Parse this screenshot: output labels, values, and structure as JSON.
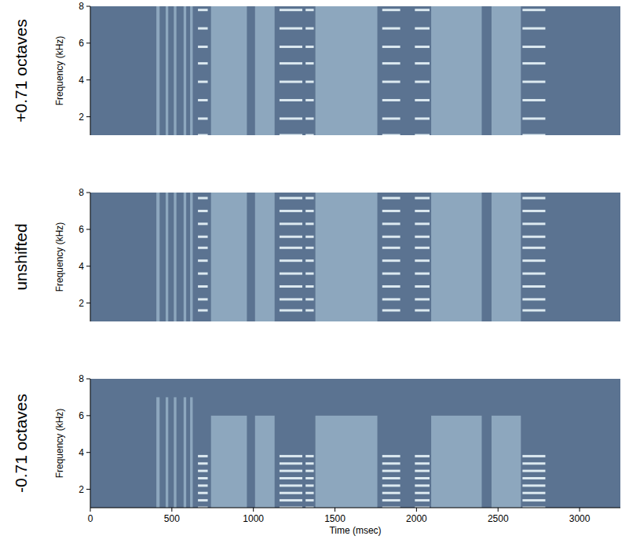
{
  "chart_data": [
    {
      "type": "spectrogram",
      "title": "+0.71 octaves",
      "ylabel": "Frequency (kHz)",
      "xlim": [
        0,
        3250
      ],
      "ylim": [
        1,
        8
      ],
      "yticks": [
        2,
        4,
        6,
        8
      ],
      "tick_labels": "y",
      "bands": [
        {
          "start": 405,
          "end": 425,
          "low": 1,
          "high": 8
        },
        {
          "start": 462,
          "end": 478,
          "low": 1,
          "high": 8
        },
        {
          "start": 512,
          "end": 528,
          "low": 1,
          "high": 8
        },
        {
          "start": 572,
          "end": 588,
          "low": 1,
          "high": 8
        },
        {
          "start": 612,
          "end": 628,
          "low": 1,
          "high": 8
        },
        {
          "start": 740,
          "end": 960,
          "low": 1,
          "high": 8
        },
        {
          "start": 1010,
          "end": 1130,
          "low": 1,
          "high": 8
        },
        {
          "start": 1380,
          "end": 1760,
          "low": 1,
          "high": 8
        },
        {
          "start": 2090,
          "end": 2400,
          "low": 1,
          "high": 8
        },
        {
          "start": 2460,
          "end": 2640,
          "low": 1,
          "high": 8
        }
      ],
      "stacks": [
        {
          "start": 660,
          "end": 720
        },
        {
          "start": 1160,
          "end": 1300
        },
        {
          "start": 1320,
          "end": 1370
        },
        {
          "start": 1790,
          "end": 1900
        },
        {
          "start": 1990,
          "end": 2080
        },
        {
          "start": 2650,
          "end": 2790
        }
      ],
      "harmonics": [
        1.0,
        1.9,
        2.9,
        3.9,
        4.9,
        5.8,
        6.8,
        7.8
      ]
    },
    {
      "type": "spectrogram",
      "title": "unshifted",
      "ylabel": "Frequency (kHz)",
      "xlim": [
        0,
        3250
      ],
      "ylim": [
        1,
        8
      ],
      "yticks": [
        2,
        4,
        6,
        8
      ],
      "tick_labels": "y",
      "bands": [
        {
          "start": 405,
          "end": 425,
          "low": 1,
          "high": 8
        },
        {
          "start": 462,
          "end": 478,
          "low": 1,
          "high": 8
        },
        {
          "start": 512,
          "end": 528,
          "low": 1,
          "high": 8
        },
        {
          "start": 572,
          "end": 588,
          "low": 1,
          "high": 8
        },
        {
          "start": 612,
          "end": 628,
          "low": 1,
          "high": 8
        },
        {
          "start": 740,
          "end": 960,
          "low": 1,
          "high": 8
        },
        {
          "start": 1010,
          "end": 1130,
          "low": 1,
          "high": 8
        },
        {
          "start": 1380,
          "end": 1760,
          "low": 1,
          "high": 8
        },
        {
          "start": 2090,
          "end": 2400,
          "low": 1,
          "high": 8
        },
        {
          "start": 2460,
          "end": 2640,
          "low": 1,
          "high": 8
        }
      ],
      "stacks": [
        {
          "start": 660,
          "end": 720
        },
        {
          "start": 1160,
          "end": 1300
        },
        {
          "start": 1320,
          "end": 1370
        },
        {
          "start": 1790,
          "end": 1900
        },
        {
          "start": 1990,
          "end": 2080
        },
        {
          "start": 2650,
          "end": 2790
        }
      ],
      "harmonics": [
        1.6,
        2.2,
        2.9,
        3.6,
        4.3,
        5.0,
        5.6,
        6.3,
        7.0,
        7.7
      ]
    },
    {
      "type": "spectrogram",
      "title": "-0.71 octaves",
      "ylabel": "Frequency (kHz)",
      "xlabel": "Time (msec)",
      "xlim": [
        0,
        3250
      ],
      "xticks": [
        0,
        500,
        1000,
        1500,
        2000,
        2500,
        3000
      ],
      "ylim": [
        1,
        8
      ],
      "yticks": [
        2,
        4,
        6,
        8
      ],
      "bands": [
        {
          "start": 405,
          "end": 425,
          "low": 1,
          "high": 7
        },
        {
          "start": 462,
          "end": 478,
          "low": 1,
          "high": 7
        },
        {
          "start": 512,
          "end": 528,
          "low": 1,
          "high": 7
        },
        {
          "start": 572,
          "end": 588,
          "low": 1,
          "high": 7
        },
        {
          "start": 612,
          "end": 628,
          "low": 1,
          "high": 7
        },
        {
          "start": 740,
          "end": 960,
          "low": 1,
          "high": 6
        },
        {
          "start": 1010,
          "end": 1130,
          "low": 1,
          "high": 6
        },
        {
          "start": 1380,
          "end": 1760,
          "low": 1,
          "high": 6
        },
        {
          "start": 2090,
          "end": 2400,
          "low": 1,
          "high": 6
        },
        {
          "start": 2460,
          "end": 2640,
          "low": 1,
          "high": 6
        }
      ],
      "stacks": [
        {
          "start": 660,
          "end": 720
        },
        {
          "start": 1160,
          "end": 1300
        },
        {
          "start": 1320,
          "end": 1370
        },
        {
          "start": 1790,
          "end": 1900
        },
        {
          "start": 1990,
          "end": 2080
        },
        {
          "start": 2650,
          "end": 2790
        }
      ],
      "harmonics": [
        1.0,
        1.4,
        1.8,
        2.2,
        2.6,
        3.0,
        3.4,
        3.8
      ]
    }
  ]
}
